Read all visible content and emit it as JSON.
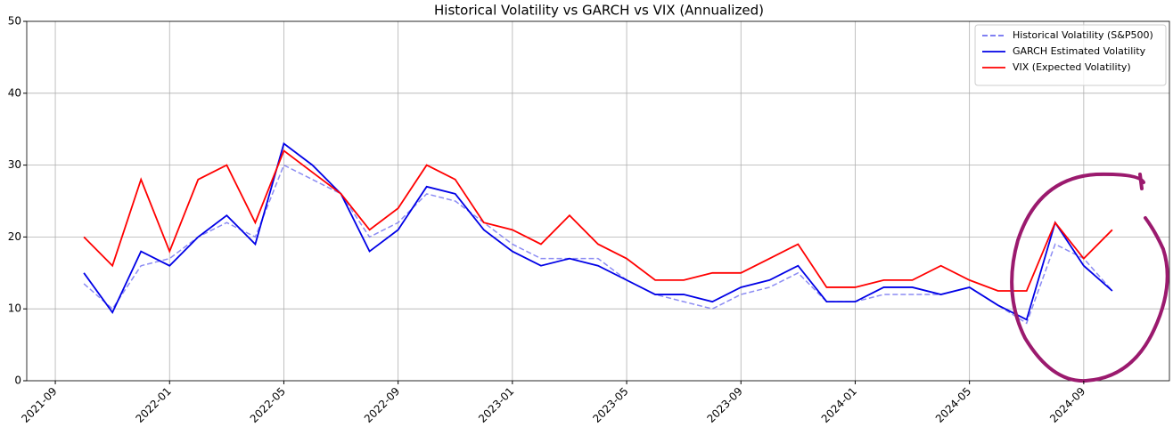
{
  "chart_data": {
    "type": "line",
    "title": "Historical Volatility vs GARCH vs VIX (Annualized)",
    "x": [
      "2021-10",
      "2021-11",
      "2021-12",
      "2022-01",
      "2022-02",
      "2022-03",
      "2022-04",
      "2022-05",
      "2022-06",
      "2022-07",
      "2022-08",
      "2022-09",
      "2022-10",
      "2022-11",
      "2022-12",
      "2023-01",
      "2023-02",
      "2023-03",
      "2023-04",
      "2023-05",
      "2023-06",
      "2023-07",
      "2023-08",
      "2023-09",
      "2023-10",
      "2023-11",
      "2023-12",
      "2024-01",
      "2024-02",
      "2024-03",
      "2024-04",
      "2024-05",
      "2024-06",
      "2024-07",
      "2024-08",
      "2024-09",
      "2024-10"
    ],
    "series": [
      {
        "name": "Historical Volatility (S&P500)",
        "color": "#6f6ff0",
        "linestyle": "dashed",
        "values": [
          13.5,
          10,
          16,
          17,
          20,
          22,
          20,
          30,
          28,
          26,
          20,
          22,
          26,
          25,
          22,
          19,
          17,
          17,
          17,
          14,
          12,
          11,
          10,
          12,
          13,
          15,
          11,
          11,
          12,
          12,
          12,
          13,
          10.5,
          8,
          19,
          17,
          12.5
        ]
      },
      {
        "name": "GARCH Estimated Volatility",
        "color": "#0000e6",
        "linestyle": "solid",
        "values": [
          15,
          9.5,
          18,
          16,
          20,
          23,
          19,
          33,
          30,
          26,
          18,
          21,
          27,
          26,
          21,
          18,
          16,
          17,
          16,
          14,
          12,
          12,
          11,
          13,
          14,
          16,
          11,
          11,
          13,
          13,
          12,
          13,
          10.5,
          8.5,
          22,
          16,
          12.5
        ]
      },
      {
        "name": "VIX (Expected Volatility)",
        "color": "#ff0000",
        "linestyle": "solid",
        "values": [
          20,
          16,
          28,
          18,
          28,
          30,
          22,
          32,
          29,
          26,
          21,
          24,
          30,
          28,
          22,
          21,
          19,
          23,
          19,
          17,
          14,
          14,
          15,
          15,
          17,
          19,
          13,
          13,
          14,
          14,
          16,
          14,
          12.5,
          12.5,
          22,
          17,
          21
        ]
      }
    ],
    "xlim": [
      "2021-08",
      "2024-12"
    ],
    "xticks": [
      "2021-09",
      "2022-01",
      "2022-05",
      "2022-09",
      "2023-01",
      "2023-05",
      "2023-09",
      "2024-01",
      "2024-05",
      "2024-09"
    ],
    "ylim": [
      0,
      50
    ],
    "yticks": [
      0,
      10,
      20,
      30,
      40,
      50
    ],
    "grid": true,
    "legend": "upper right"
  }
}
